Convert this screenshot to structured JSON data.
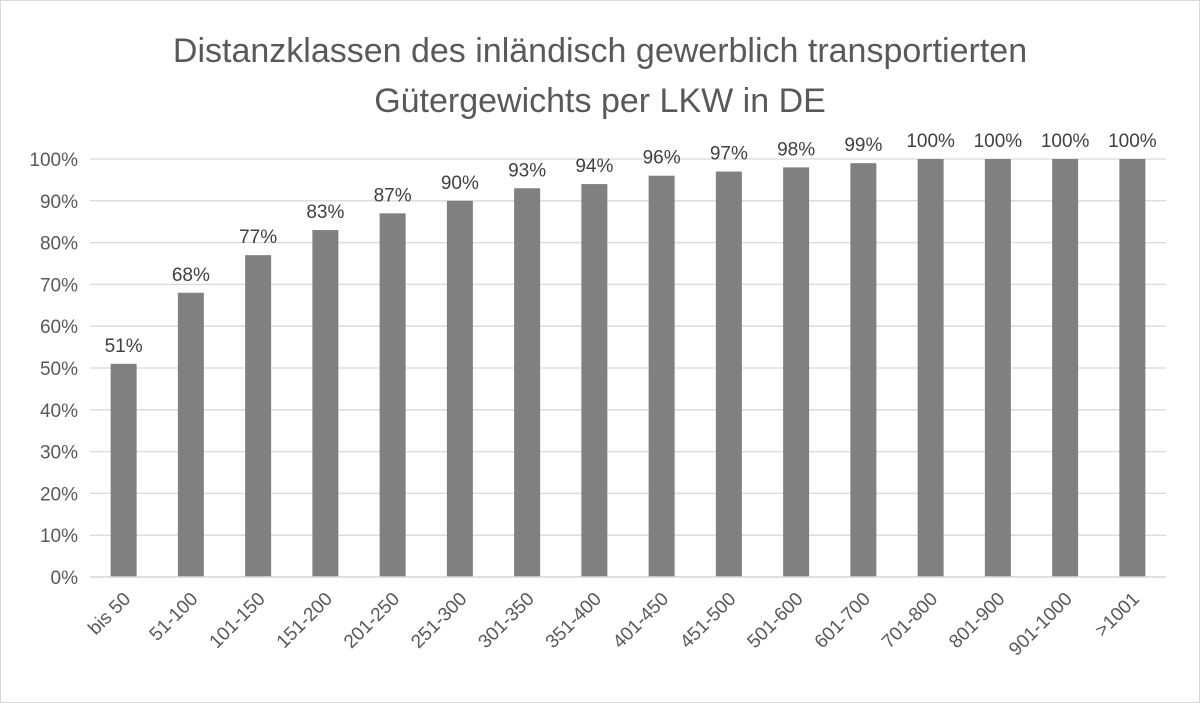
{
  "chart_data": {
    "type": "bar",
    "title_lines": [
      "Distanzklassen des inländisch gewerblich transportierten",
      "Gütergewichts per LKW in DE"
    ],
    "categories": [
      "bis 50",
      "51-100",
      "101-150",
      "151-200",
      "201-250",
      "251-300",
      "301-350",
      "351-400",
      "401-450",
      "451-500",
      "501-600",
      "601-700",
      "701-800",
      "801-900",
      "901-1000",
      ">1001"
    ],
    "values": [
      51,
      68,
      77,
      83,
      87,
      90,
      93,
      94,
      96,
      97,
      98,
      99,
      100,
      100,
      100,
      100
    ],
    "data_labels": [
      "51%",
      "68%",
      "77%",
      "83%",
      "87%",
      "90%",
      "93%",
      "94%",
      "96%",
      "97%",
      "98%",
      "99%",
      "100%",
      "100%",
      "100%",
      "100%"
    ],
    "y_ticks": [
      "0%",
      "10%",
      "20%",
      "30%",
      "40%",
      "50%",
      "60%",
      "70%",
      "80%",
      "90%",
      "100%"
    ],
    "ylim": [
      0,
      100
    ],
    "grid": true,
    "legend": "none",
    "bar_color": "#808080",
    "grid_color": "#d9d9d9"
  }
}
